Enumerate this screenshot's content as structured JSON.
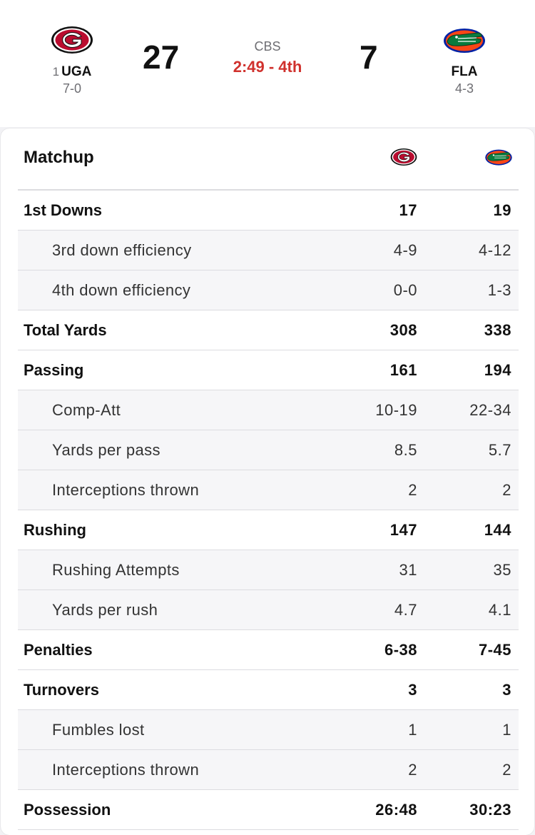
{
  "scoreboard": {
    "home": {
      "rank": "1",
      "abbr": "UGA",
      "record": "7-0",
      "score": "27",
      "logo": "georgia-g-logo",
      "primary_color": "#BA0C2F"
    },
    "away": {
      "abbr": "FLA",
      "record": "4-3",
      "score": "7",
      "logo": "florida-gator-logo",
      "primary_color": "#0021A5",
      "secondary_color": "#FA4616"
    },
    "network": "CBS",
    "clock": "2:49 - 4th",
    "clock_color": "#D0312D"
  },
  "matchup": {
    "title": "Matchup",
    "rows": [
      {
        "label": "1st Downs",
        "home": "17",
        "away": "19",
        "sub": false
      },
      {
        "label": "3rd down efficiency",
        "home": "4-9",
        "away": "4-12",
        "sub": true
      },
      {
        "label": "4th down efficiency",
        "home": "0-0",
        "away": "1-3",
        "sub": true
      },
      {
        "label": "Total Yards",
        "home": "308",
        "away": "338",
        "sub": false
      },
      {
        "label": "Passing",
        "home": "161",
        "away": "194",
        "sub": false
      },
      {
        "label": "Comp-Att",
        "home": "10-19",
        "away": "22-34",
        "sub": true
      },
      {
        "label": "Yards per pass",
        "home": "8.5",
        "away": "5.7",
        "sub": true
      },
      {
        "label": "Interceptions thrown",
        "home": "2",
        "away": "2",
        "sub": true
      },
      {
        "label": "Rushing",
        "home": "147",
        "away": "144",
        "sub": false
      },
      {
        "label": "Rushing Attempts",
        "home": "31",
        "away": "35",
        "sub": true
      },
      {
        "label": "Yards per rush",
        "home": "4.7",
        "away": "4.1",
        "sub": true
      },
      {
        "label": "Penalties",
        "home": "6-38",
        "away": "7-45",
        "sub": false
      },
      {
        "label": "Turnovers",
        "home": "3",
        "away": "3",
        "sub": false
      },
      {
        "label": "Fumbles lost",
        "home": "1",
        "away": "1",
        "sub": true
      },
      {
        "label": "Interceptions thrown",
        "home": "2",
        "away": "2",
        "sub": true
      },
      {
        "label": "Possession",
        "home": "26:48",
        "away": "30:23",
        "sub": false
      }
    ]
  }
}
